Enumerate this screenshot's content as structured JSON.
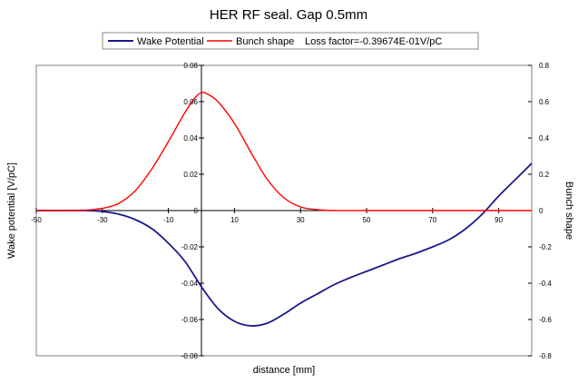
{
  "chart_data": {
    "type": "line",
    "title": "HER RF seal. Gap 0.5mm",
    "xlabel": "distance [mm]",
    "ylabel_left": "Wake potential [V/pC]",
    "ylabel_right": "Bunch shape",
    "legend_note": "Loss factor=-0.39674E-01V/pC",
    "legend_position": "top",
    "grid": false,
    "xlim": [
      -50,
      100
    ],
    "ylim_left": [
      -0.08,
      0.08
    ],
    "ylim_right": [
      -0.8,
      0.8
    ],
    "x_ticks": [
      "-50",
      "-30",
      "-10",
      "10",
      "30",
      "50",
      "70",
      "90"
    ],
    "y_ticks_left": [
      "0.08",
      "0.06",
      "0.04",
      "0.02",
      "0",
      "-0.02",
      "-0.04",
      "-0.06",
      "-0.08"
    ],
    "y_ticks_right": [
      "0.8",
      "0.6",
      "0.4",
      "0.2",
      "0",
      "-0.2",
      "-0.4",
      "-0.6",
      "-0.8"
    ],
    "series": [
      {
        "name": "Wake Potential",
        "axis": "left",
        "color": "#1a1a8c",
        "x": [
          -50,
          -40,
          -35,
          -30,
          -25,
          -20,
          -15,
          -10,
          -5,
          0,
          5,
          10,
          15,
          20,
          25,
          30,
          35,
          40,
          45,
          50,
          55,
          60,
          65,
          70,
          75,
          80,
          85,
          90,
          95,
          100
        ],
        "y": [
          0,
          0,
          0,
          -0.0005,
          -0.002,
          -0.005,
          -0.01,
          -0.018,
          -0.028,
          -0.042,
          -0.054,
          -0.061,
          -0.0635,
          -0.062,
          -0.057,
          -0.051,
          -0.046,
          -0.041,
          -0.037,
          -0.0335,
          -0.03,
          -0.0265,
          -0.0235,
          -0.02,
          -0.016,
          -0.01,
          -0.002,
          0.008,
          0.017,
          0.026
        ]
      },
      {
        "name": "Bunch shape",
        "axis": "right",
        "color": "#ff0000",
        "x": [
          -50,
          -40,
          -35,
          -30,
          -25,
          -20,
          -15,
          -10,
          -5,
          -2,
          0,
          2,
          5,
          10,
          15,
          20,
          25,
          30,
          35,
          40,
          50,
          60,
          70,
          80,
          90,
          100
        ],
        "y": [
          0,
          0,
          0.002,
          0.012,
          0.04,
          0.11,
          0.23,
          0.38,
          0.54,
          0.62,
          0.65,
          0.64,
          0.6,
          0.48,
          0.32,
          0.17,
          0.07,
          0.02,
          0.005,
          0,
          0,
          0,
          0,
          0,
          0,
          0
        ]
      }
    ]
  }
}
